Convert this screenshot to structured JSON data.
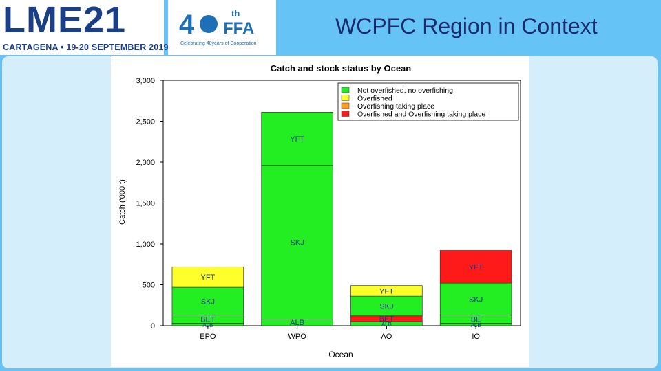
{
  "header": {
    "lme_logo": "LME21",
    "lme_subtitle": "CARTAGENA • 19-20 SEPTEMBER 2019",
    "ffa_logo": "40th FFA",
    "ffa_tagline": "Celebrating 40years of Cooperation",
    "title": "WCPFC Region in Context"
  },
  "colors": {
    "background": "#65c4f5",
    "panel": "#d4eefb",
    "green": "#22ee22",
    "yellow": "#ffff2a",
    "orange": "#ff9d1e",
    "red": "#ff1a1a"
  },
  "chart_data": {
    "type": "bar",
    "stacked": true,
    "title": "Catch and stock status by Ocean",
    "xlabel": "Ocean",
    "ylabel": "Catch ('000 t)",
    "ylim": [
      0,
      3000
    ],
    "yticks": [
      0,
      500,
      1000,
      1500,
      2000,
      2500,
      3000
    ],
    "ytick_labels": [
      "0",
      "500",
      "1,000",
      "1,500",
      "2,000",
      "2,500",
      "3,000"
    ],
    "categories": [
      "EPO",
      "WPO",
      "AO",
      "IO"
    ],
    "legend": [
      {
        "label": "Not overfished, no overfishing",
        "color": "#22ee22"
      },
      {
        "label": "Overfished",
        "color": "#ffff2a"
      },
      {
        "label": "Overfishing taking place",
        "color": "#ff9d1e"
      },
      {
        "label": "Overfished and Overfishing taking place",
        "color": "#ff1a1a"
      }
    ],
    "legend_position": "top-right",
    "stacks": [
      {
        "category": "EPO",
        "segments": [
          {
            "label": "ALB",
            "value": 30,
            "status": "green"
          },
          {
            "label": "BET",
            "value": 100,
            "status": "green"
          },
          {
            "label": "SKJ",
            "value": 340,
            "status": "green"
          },
          {
            "label": "YFT",
            "value": 250,
            "status": "yellow"
          }
        ]
      },
      {
        "category": "WPO",
        "segments": [
          {
            "label": "ALB",
            "value": 80,
            "status": "green"
          },
          {
            "label": "BET",
            "value": 0,
            "status": "green"
          },
          {
            "label": "SKJ",
            "value": 1880,
            "status": "green"
          },
          {
            "label": "YFT",
            "value": 650,
            "status": "green"
          }
        ]
      },
      {
        "category": "AO",
        "segments": [
          {
            "label": "ALB",
            "value": 50,
            "status": "green"
          },
          {
            "label": "BET",
            "value": 70,
            "status": "red"
          },
          {
            "label": "SKJ",
            "value": 240,
            "status": "green"
          },
          {
            "label": "YFT",
            "value": 130,
            "status": "yellow"
          }
        ]
      },
      {
        "category": "IO",
        "segments": [
          {
            "label": "ALB",
            "value": 30,
            "status": "green"
          },
          {
            "label": "BE",
            "value": 100,
            "status": "green"
          },
          {
            "label": "SKJ",
            "value": 390,
            "status": "green"
          },
          {
            "label": "YFT",
            "value": 400,
            "status": "red"
          }
        ]
      }
    ]
  }
}
